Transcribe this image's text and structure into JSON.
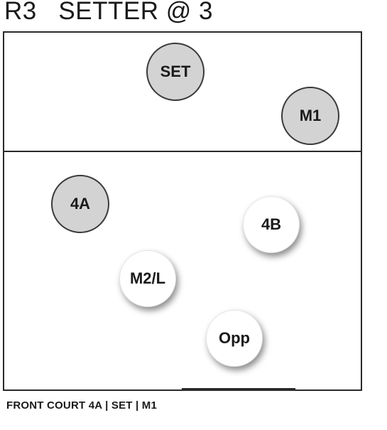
{
  "title": "R3   SETTER @ 3",
  "players": {
    "set": "SET",
    "m1": "M1",
    "p4a": "4A",
    "p4b": "4B",
    "m2l": "M2/L",
    "opp": "Opp"
  },
  "caption": "FRONT COURT 4A | SET | M1",
  "colors": {
    "highlighted_player": "#d3d3d3",
    "other_player": "#ffffff",
    "lines": "#2a2a2a"
  }
}
